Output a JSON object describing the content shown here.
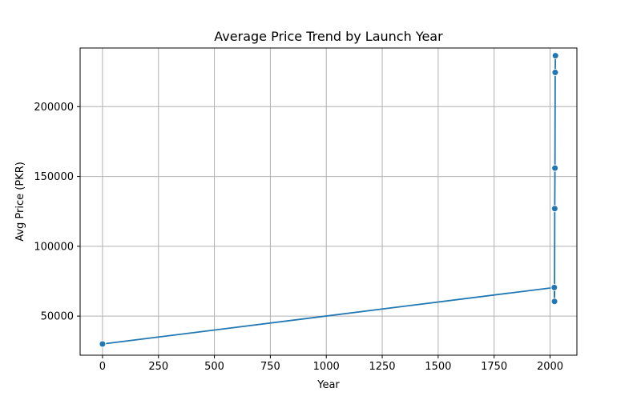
{
  "chart_data": {
    "type": "line",
    "title": "Average Price Trend by Launch Year",
    "xlabel": "Year",
    "ylabel": "Avg Price (PKR)",
    "xlim": [
      -100,
      2120
    ],
    "ylim": [
      22000,
      242000
    ],
    "xticks": [
      0,
      250,
      500,
      750,
      1000,
      1250,
      1500,
      1750,
      2000
    ],
    "yticks": [
      50000,
      100000,
      150000,
      200000
    ],
    "grid": true,
    "legend": "none",
    "series": [
      {
        "color": "#1f77b4",
        "marker": "circle",
        "points": [
          {
            "x": 0,
            "y": 30000
          },
          {
            "x": 2019,
            "y": 70500
          },
          {
            "x": 2020,
            "y": 60500
          },
          {
            "x": 2021,
            "y": 127000
          },
          {
            "x": 2022,
            "y": 156000
          },
          {
            "x": 2023,
            "y": 224500
          },
          {
            "x": 2024,
            "y": 236500
          }
        ]
      }
    ]
  }
}
